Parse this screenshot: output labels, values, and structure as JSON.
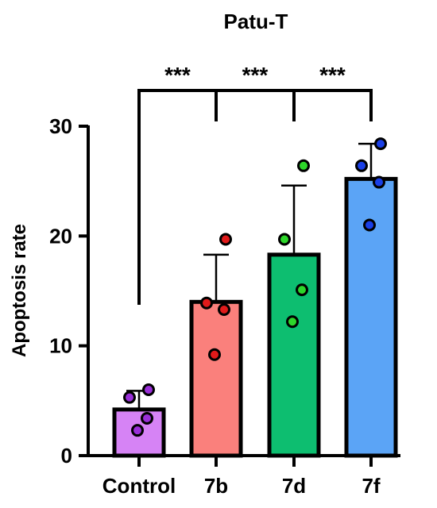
{
  "chart_data": {
    "type": "bar",
    "title": "Patu-T",
    "xlabel": "",
    "ylabel": "Apoptosis rate",
    "ylim": [
      0,
      30
    ],
    "yticks": [
      0,
      10,
      20,
      30
    ],
    "grid": false,
    "categories": [
      "Control",
      "7b",
      "7d",
      "7f"
    ],
    "values": [
      4.2,
      14.0,
      18.3,
      25.2
    ],
    "error": [
      1.7,
      4.3,
      6.3,
      3.2
    ],
    "points": [
      [
        6.0,
        5.3,
        3.4,
        2.3
      ],
      [
        19.7,
        13.9,
        13.3,
        9.2
      ],
      [
        26.4,
        19.7,
        15.1,
        12.2
      ],
      [
        28.4,
        26.4,
        24.9,
        21.0
      ]
    ],
    "bar_colors": [
      "#d683f5",
      "#fa807c",
      "#0dbe70",
      "#5ba4f6"
    ],
    "point_colors": [
      "#9a2fd8",
      "#e01a1a",
      "#2dd62a",
      "#1a3fe6"
    ],
    "significance": [
      {
        "from": "Control",
        "to": "7b",
        "label": "***"
      },
      {
        "from": "Control",
        "to": "7d",
        "label": "***"
      },
      {
        "from": "Control",
        "to": "7f",
        "label": "***"
      }
    ]
  }
}
